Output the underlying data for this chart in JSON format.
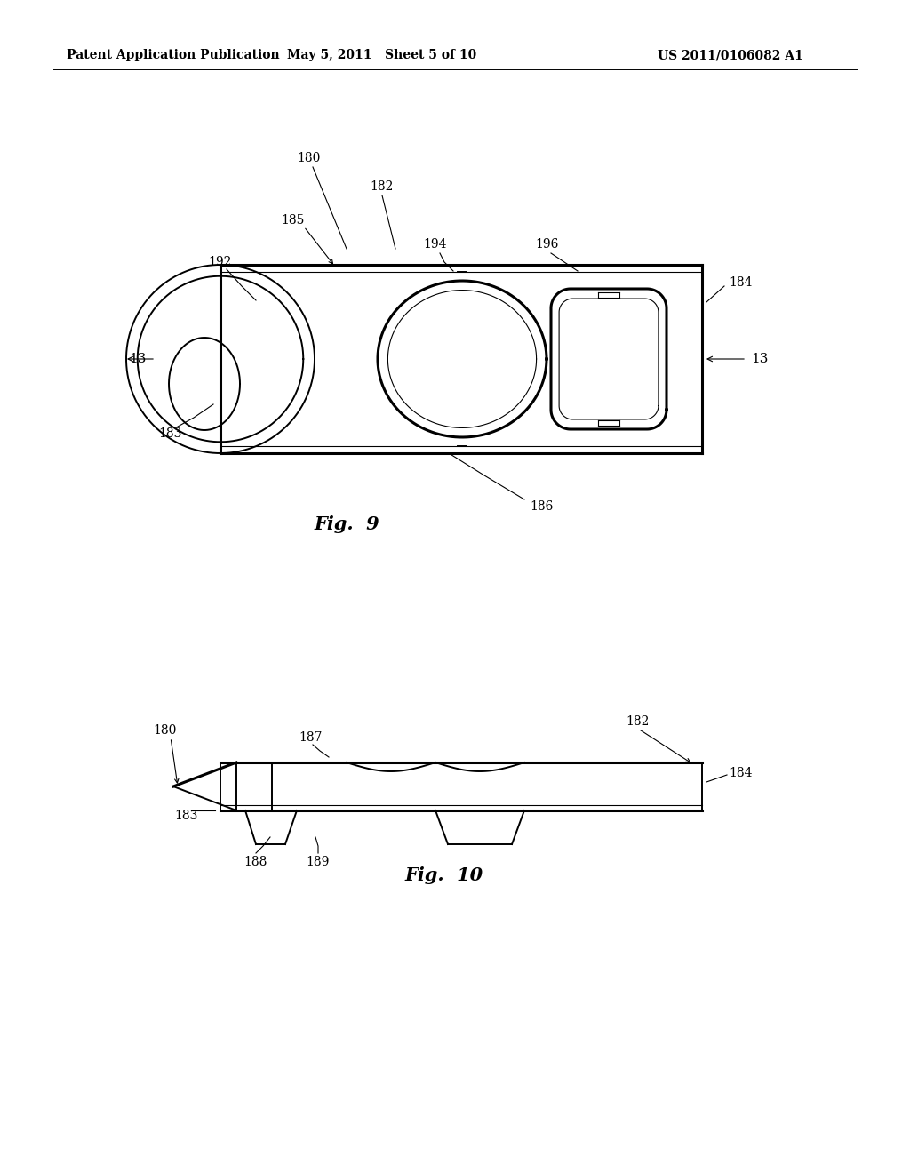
{
  "background_color": "#ffffff",
  "header_left": "Patent Application Publication",
  "header_mid": "May 5, 2011   Sheet 5 of 10",
  "header_right": "US 2011/0106082 A1",
  "fig9_label": "Fig.  9",
  "fig10_label": "Fig.  10",
  "line_color": "#000000",
  "lw_thin": 0.8,
  "lw_med": 1.4,
  "lw_thick": 2.2,
  "ann_fs": 10,
  "header_fs": 10,
  "fig_label_fs": 15
}
